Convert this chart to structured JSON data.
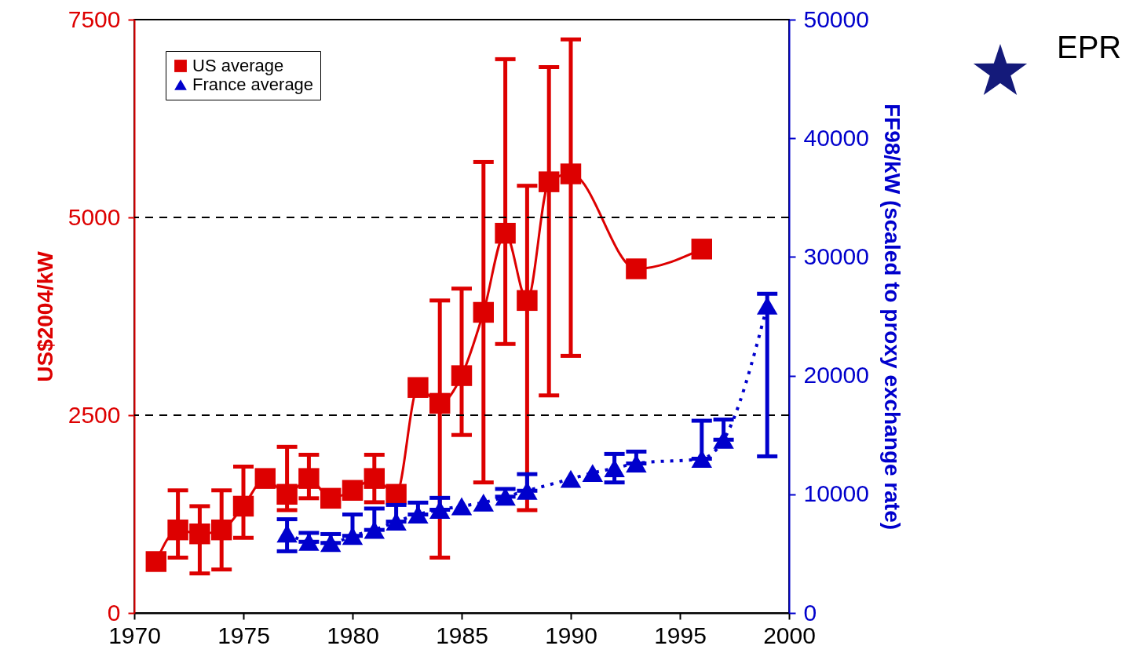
{
  "chart_data": {
    "type": "line",
    "ylabel": "US$2004/kW",
    "y2label": "FF98/kW (scaled to proxy exchange rate)",
    "xlim": [
      1970,
      2000
    ],
    "xticks": [
      1970,
      1975,
      1980,
      1985,
      1990,
      1995,
      2000
    ],
    "ylim": [
      0,
      7500
    ],
    "yticks": [
      0,
      2500,
      5000,
      7500
    ],
    "y2lim": [
      0,
      50000
    ],
    "y2ticks": [
      0,
      10000,
      20000,
      30000,
      40000,
      50000
    ],
    "legend": "top left",
    "grid": false,
    "ref_lines": [
      {
        "axis": "y",
        "value": 2500,
        "color": "#000000",
        "line_style": "dashed"
      },
      {
        "axis": "y",
        "value": 5000,
        "color": "#000000",
        "line_style": "dashed"
      }
    ],
    "annotations": [
      "EPR"
    ],
    "series": [
      {
        "name": "US average",
        "color": "#dd0000",
        "marker": "square",
        "line_style": "solid",
        "axis": "y",
        "x": [
          1971,
          1972,
          1973,
          1974,
          1975,
          1976,
          1977,
          1978,
          1979,
          1980,
          1981,
          1982,
          1983,
          1984,
          1985,
          1986,
          1987,
          1988,
          1989,
          1990,
          1993,
          1996
        ],
        "values": [
          650,
          1050,
          1000,
          1050,
          1350,
          1700,
          1500,
          1700,
          1450,
          1550,
          1700,
          1500,
          2850,
          2650,
          3000,
          3800,
          4800,
          3950,
          5450,
          5550,
          4350,
          4600
        ],
        "errors": [
          null,
          [
            700,
            1550
          ],
          [
            500,
            1350
          ],
          [
            550,
            1550
          ],
          [
            950,
            1850
          ],
          null,
          [
            1300,
            2100
          ],
          [
            1450,
            2000
          ],
          null,
          null,
          [
            1400,
            2000
          ],
          null,
          null,
          [
            700,
            3950
          ],
          [
            2250,
            4100
          ],
          [
            1650,
            5700
          ],
          [
            3400,
            7000
          ],
          [
            1300,
            5400
          ],
          [
            2750,
            6900
          ],
          [
            3250,
            7250
          ],
          null,
          null
        ]
      },
      {
        "name": "France average",
        "color": "#0000cc",
        "marker": "triangle",
        "line_style": "dotted",
        "axis": "y2",
        "x": [
          1977,
          1978,
          1979,
          1980,
          1981,
          1982,
          1983,
          1984,
          1985,
          1986,
          1987,
          1988,
          1990,
          1991,
          1992,
          1993,
          1996,
          1997,
          1999
        ],
        "values": [
          6700,
          6000,
          5900,
          6500,
          7000,
          7700,
          8300,
          8700,
          9000,
          9300,
          9800,
          10300,
          11300,
          11800,
          12200,
          12600,
          13000,
          14600,
          25900
        ],
        "errors": [
          [
            5200,
            7900
          ],
          [
            6000,
            6750
          ],
          [
            5900,
            6650
          ],
          [
            6500,
            8300
          ],
          [
            7000,
            8800
          ],
          [
            7700,
            9100
          ],
          [
            8300,
            9300
          ],
          [
            8700,
            9700
          ],
          null,
          null,
          [
            9800,
            10450
          ],
          [
            10300,
            11700
          ],
          null,
          null,
          [
            11000,
            13400
          ],
          [
            12600,
            13600
          ],
          [
            13000,
            16200
          ],
          [
            14600,
            16300
          ],
          [
            13200,
            26900
          ]
        ]
      }
    ]
  }
}
